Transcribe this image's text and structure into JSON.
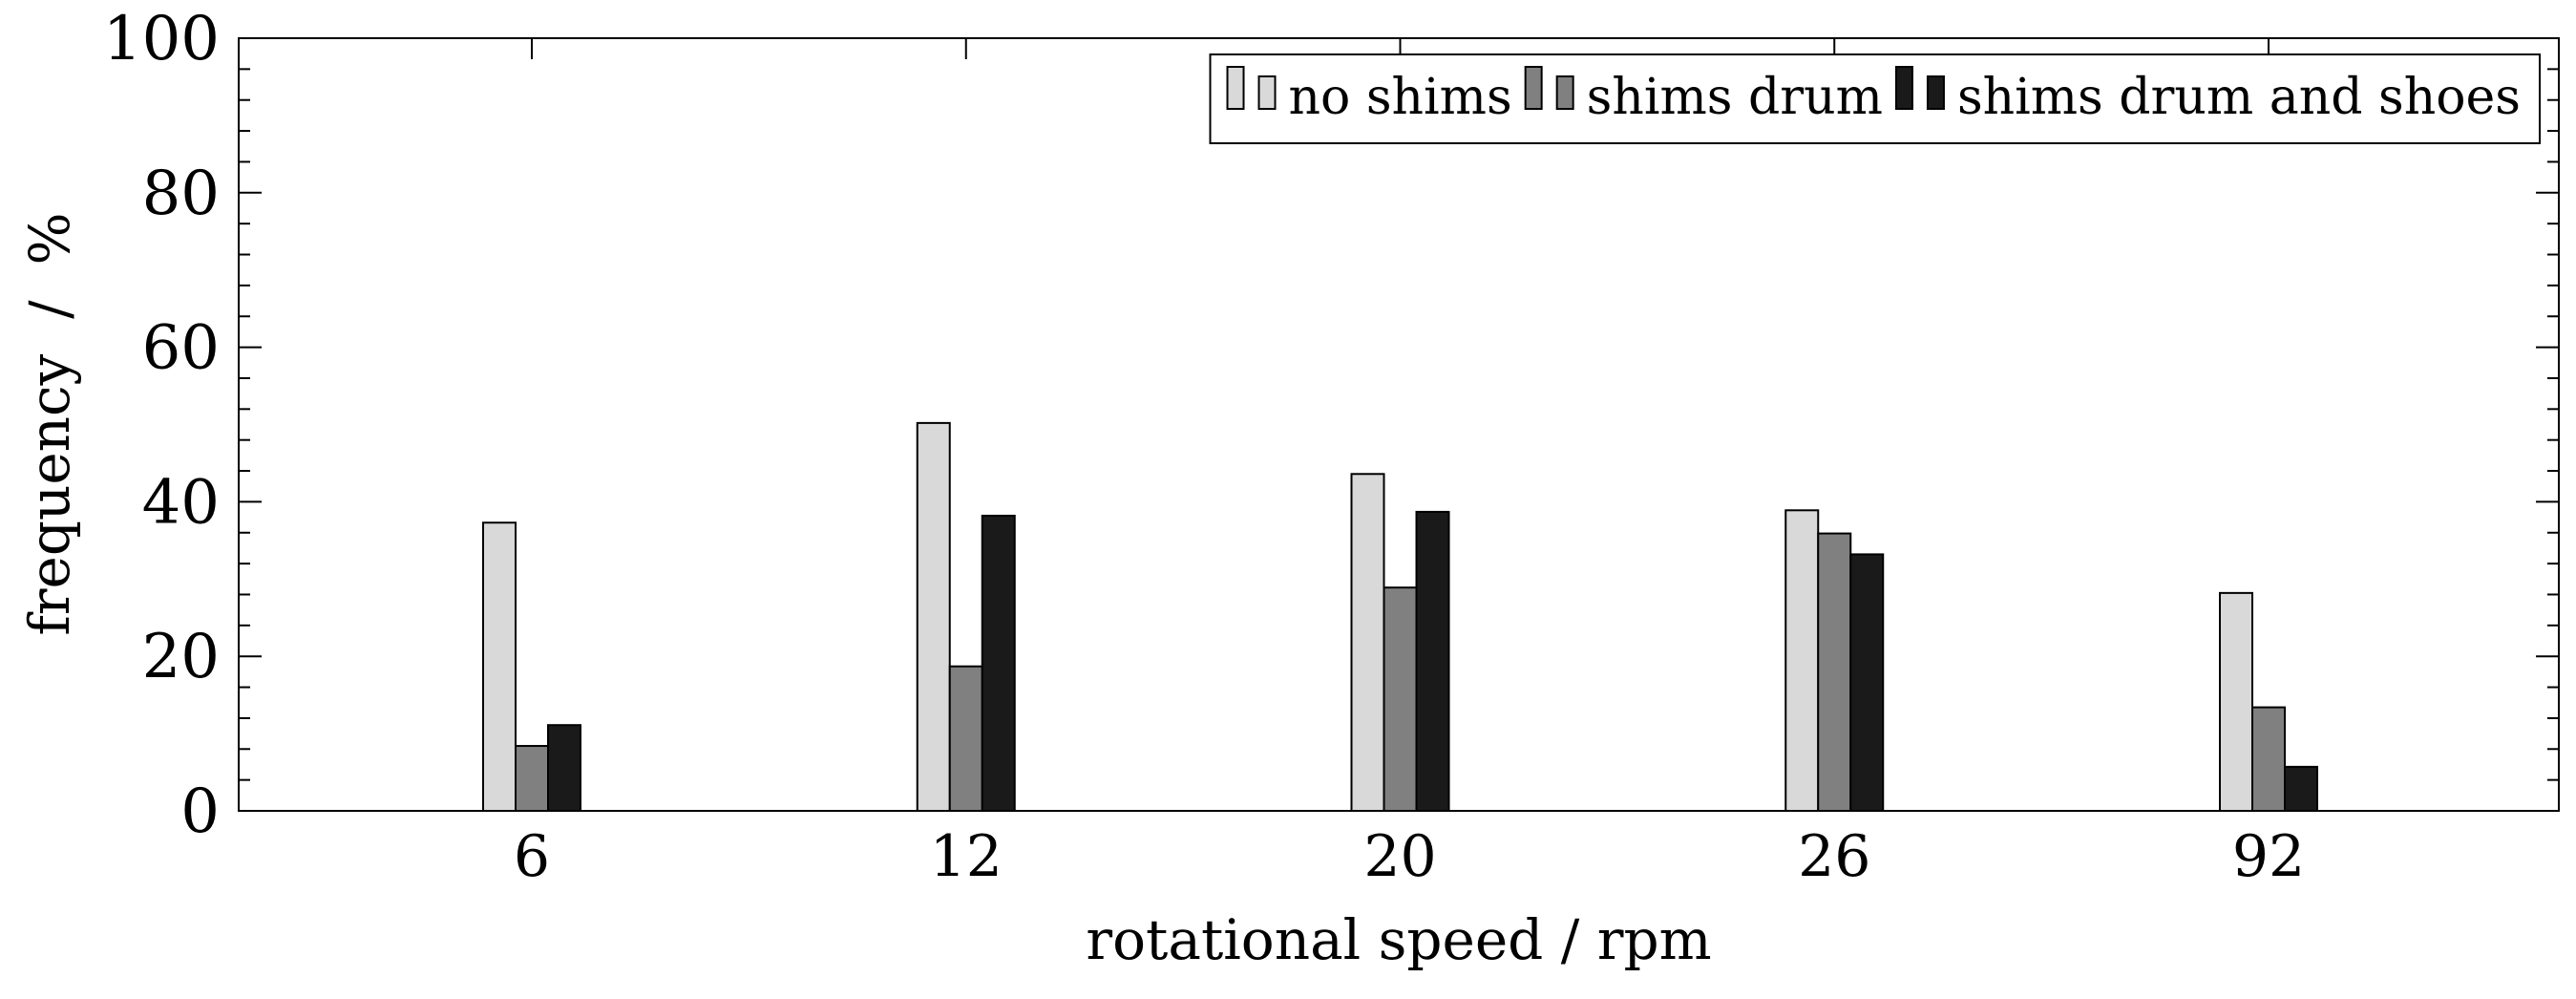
{
  "chart_data": {
    "type": "bar",
    "title": "",
    "xlabel": "rotational speed / rpm",
    "ylabel": "frequency  /  %",
    "categories": [
      "6",
      "12",
      "20",
      "26",
      "92"
    ],
    "ylim": [
      0,
      100
    ],
    "yticks": [
      0,
      20,
      40,
      60,
      80,
      100
    ],
    "grid": false,
    "legend_position": "top-right",
    "series": [
      {
        "name": "no shims",
        "color": "#d9d9d9",
        "values": [
          37.3,
          50.2,
          43.6,
          38.9,
          28.2
        ]
      },
      {
        "name": "shims drum",
        "color": "#808080",
        "values": [
          8.4,
          18.7,
          28.9,
          35.9,
          13.4
        ]
      },
      {
        "name": "shims drum and shoes",
        "color": "#1a1a1a",
        "values": [
          11.1,
          38.2,
          38.7,
          33.2,
          5.7
        ]
      }
    ]
  }
}
